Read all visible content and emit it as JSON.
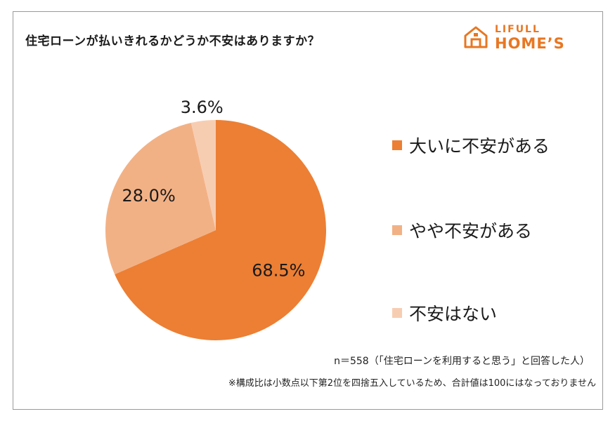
{
  "title": "住宅ローンが払いきれるかどうか不安はありますか？",
  "logo": {
    "top": "LIFULL",
    "bottom": "HOME’S",
    "color": "#e87722"
  },
  "chart_data": {
    "type": "pie",
    "categories": [
      "大いに不安がある",
      "やや不安がある",
      "不安はない"
    ],
    "values": [
      68.5,
      28.0,
      3.6
    ],
    "value_labels": [
      "68.5%",
      "28.0%",
      "3.6%"
    ],
    "colors": [
      "#ec7f34",
      "#f2b185",
      "#f7cdb2"
    ],
    "legend_position": "right"
  },
  "notes": {
    "sample": "n＝558（「住宅ローンを利用すると思う」と回答した人）",
    "rounding": "※構成比は小数点以下第2位を四捨五入しているため、合計値は100にはなっておりません"
  }
}
